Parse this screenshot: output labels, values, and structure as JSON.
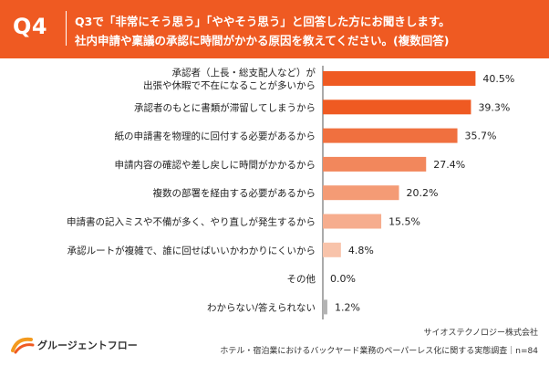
{
  "header": {
    "label": "Q4",
    "line1": "Q3で「非常にそう思う」「ややそう思う」と回答した方にお聞きします。",
    "line2": "社内申請や稟議の承認に時間がかかる原因を教えてください。(複数回答)"
  },
  "chart_data": {
    "type": "bar",
    "orientation": "horizontal",
    "categories": [
      [
        "承認者（上長・総支配人など）が",
        "出張や休暇で不在になることが多いから"
      ],
      [
        "承認者のもとに書類が滞留してしまうから"
      ],
      [
        "紙の申請書を物理的に回付する必要があるから"
      ],
      [
        "申請内容の確認や差し戻しに時間がかかるから"
      ],
      [
        "複数の部署を経由する必要があるから"
      ],
      [
        "申請書の記入ミスや不備が多く、やり直しが発生するから"
      ],
      [
        "承認ルートが複雑で、誰に回せばいいかわかりにくいから"
      ],
      [
        "その他"
      ],
      [
        "わからない/答えられない"
      ]
    ],
    "values": [
      40.5,
      39.3,
      35.7,
      27.4,
      20.2,
      15.5,
      4.8,
      0.0,
      1.2
    ],
    "value_labels": [
      "40.5%",
      "39.3%",
      "35.7%",
      "27.4%",
      "20.2%",
      "15.5%",
      "4.8%",
      "0.0%",
      "1.2%"
    ],
    "colors": [
      "#ef5a22",
      "#ef5a22",
      "#f0703f",
      "#f2875c",
      "#f49b75",
      "#f6ad8e",
      "#f8c3aa",
      "#f8c3aa",
      "#b3b3b3"
    ],
    "xlim": [
      0,
      45
    ]
  },
  "colors": {
    "accent": "#ef5a22",
    "axis": "#555555"
  },
  "logo": {
    "icon": "gurugent-flow-logo-icon",
    "name": "グルージェントフロー"
  },
  "footer": {
    "company": "サイオステクノロジー株式会社",
    "survey": "ホテル・宿泊業におけるバックヤード業務のペーパーレス化に関する実態調査｜n=84"
  }
}
